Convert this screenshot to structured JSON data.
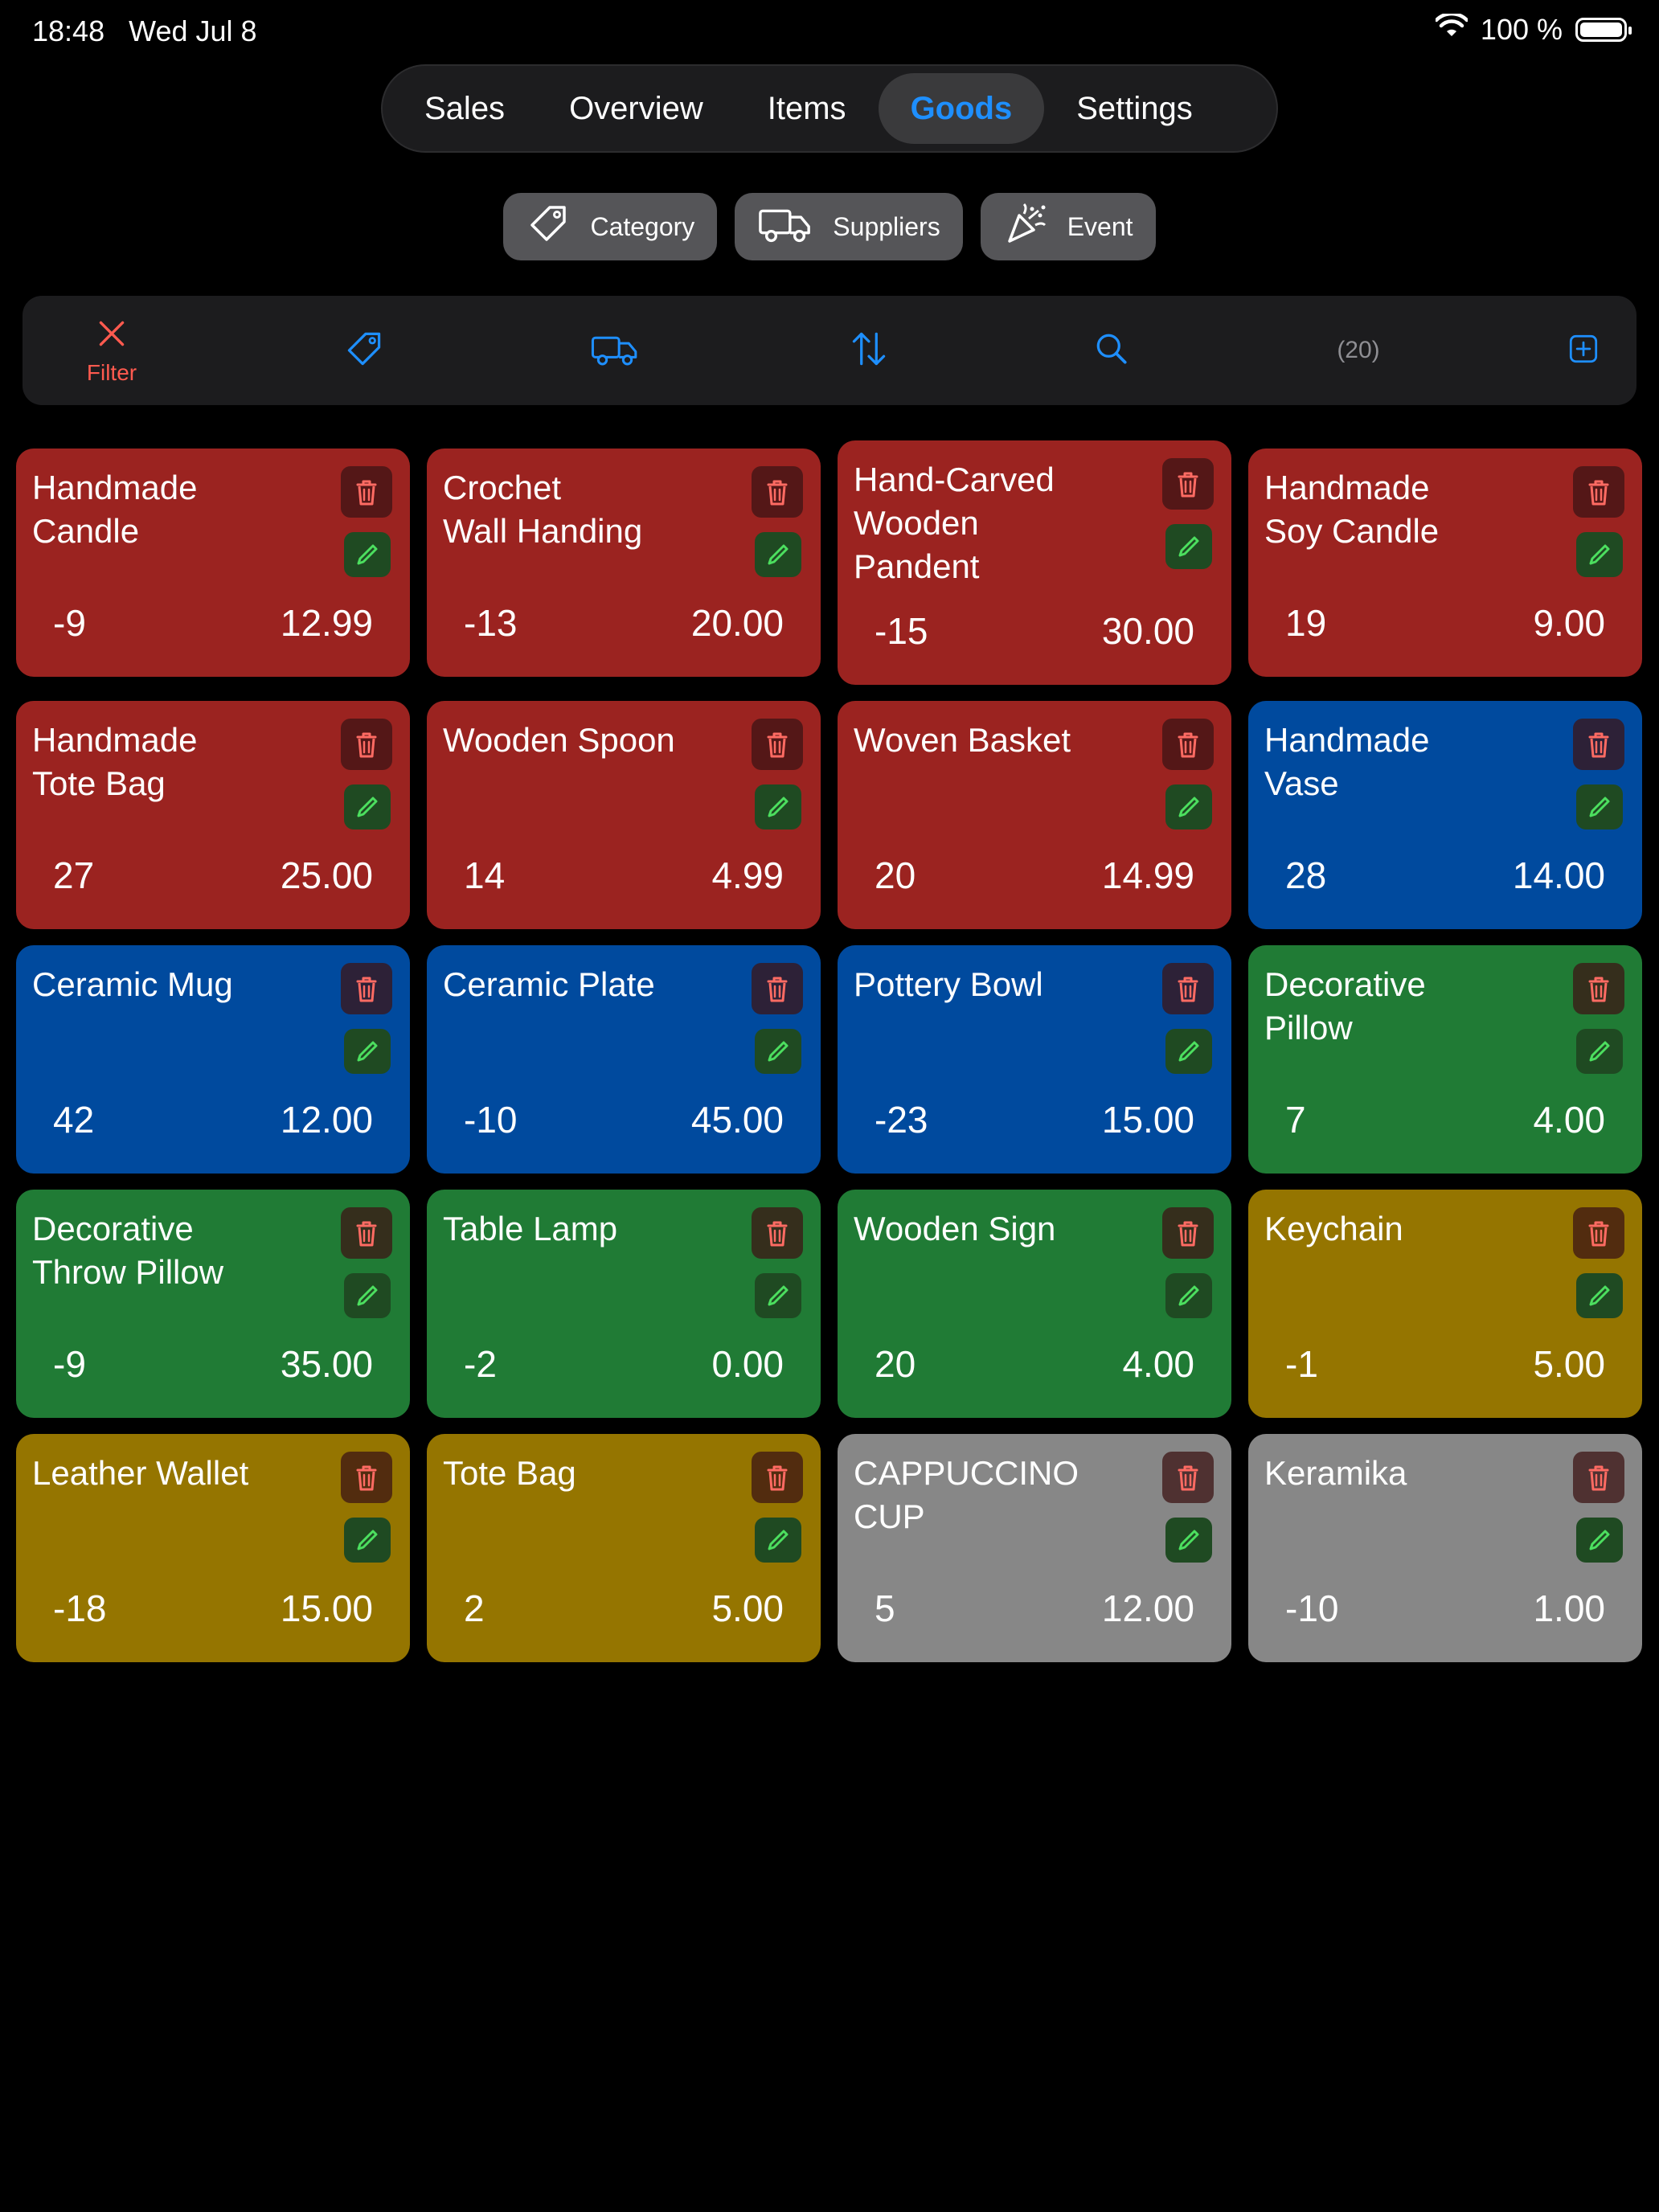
{
  "status_bar": {
    "time": "18:48",
    "date": "Wed Jul 8",
    "battery": "100 %",
    "wifi_icon": "wifi-icon",
    "battery_icon": "battery-icon"
  },
  "nav": {
    "tabs": [
      {
        "label": "Sales",
        "active": false
      },
      {
        "label": "Overview",
        "active": false
      },
      {
        "label": "Items",
        "active": false
      },
      {
        "label": "Goods",
        "active": true
      },
      {
        "label": "Settings",
        "active": false
      }
    ]
  },
  "sub_buttons": [
    {
      "label": "Category",
      "icon": "tag-icon"
    },
    {
      "label": "Suppliers",
      "icon": "truck-icon"
    },
    {
      "label": "Event",
      "icon": "party-popper-icon"
    }
  ],
  "toolbar": {
    "filter_label": "Filter",
    "count": "(20)"
  },
  "colors": {
    "red": "#9b2320",
    "blue": "#004a9e",
    "green": "#207b35",
    "yellow": "#957500",
    "gray": "#878787",
    "accent": "#1e8fff"
  },
  "goods": [
    {
      "name": " Handmade\nCandle",
      "stock": "-9",
      "price": "12.99",
      "color": "#9b2320"
    },
    {
      "name": "Crochet\nWall Handing",
      "stock": "-13",
      "price": "20.00",
      "color": "#9b2320"
    },
    {
      "name": "Hand-Carved\nWooden\nPandent",
      "stock": "-15",
      "price": "30.00",
      "color": "#9b2320"
    },
    {
      "name": "Handmade\nSoy Candle",
      "stock": "19",
      "price": "9.00",
      "color": "#9b2320"
    },
    {
      "name": "Handmade\nTote Bag",
      "stock": "27",
      "price": "25.00",
      "color": "#9b2320"
    },
    {
      "name": "Wooden Spoon",
      "stock": "14",
      "price": "4.99",
      "color": "#9b2320"
    },
    {
      "name": "Woven Basket",
      "stock": "20",
      "price": "14.99",
      "color": "#9b2320"
    },
    {
      "name": " Handmade\nVase",
      "stock": "28",
      "price": "14.00",
      "color": "#004a9e"
    },
    {
      "name": "Ceramic Mug",
      "stock": "42",
      "price": "12.00",
      "color": "#004a9e"
    },
    {
      "name": "Ceramic Plate",
      "stock": "-10",
      "price": "45.00",
      "color": "#004a9e"
    },
    {
      "name": "Pottery Bowl",
      "stock": "-23",
      "price": "15.00",
      "color": "#004a9e"
    },
    {
      "name": "Decorative\nPillow",
      "stock": "7",
      "price": "4.00",
      "color": "#207b35"
    },
    {
      "name": "Decorative\nThrow Pillow",
      "stock": "-9",
      "price": "35.00",
      "color": "#207b35"
    },
    {
      "name": "Table Lamp",
      "stock": "-2",
      "price": "0.00",
      "color": "#207b35"
    },
    {
      "name": "Wooden Sign",
      "stock": "20",
      "price": "4.00",
      "color": "#207b35"
    },
    {
      "name": "Keychain",
      "stock": "-1",
      "price": "5.00",
      "color": "#957500"
    },
    {
      "name": "Leather Wallet",
      "stock": "-18",
      "price": "15.00",
      "color": "#957500"
    },
    {
      "name": "Tote Bag",
      "stock": "2",
      "price": "5.00",
      "color": "#957500"
    },
    {
      "name": "CAPPUCCINO\nCUP",
      "stock": "5",
      "price": "12.00",
      "color": "#878787"
    },
    {
      "name": "Keramika",
      "stock": "-10",
      "price": "1.00",
      "color": "#878787"
    }
  ]
}
